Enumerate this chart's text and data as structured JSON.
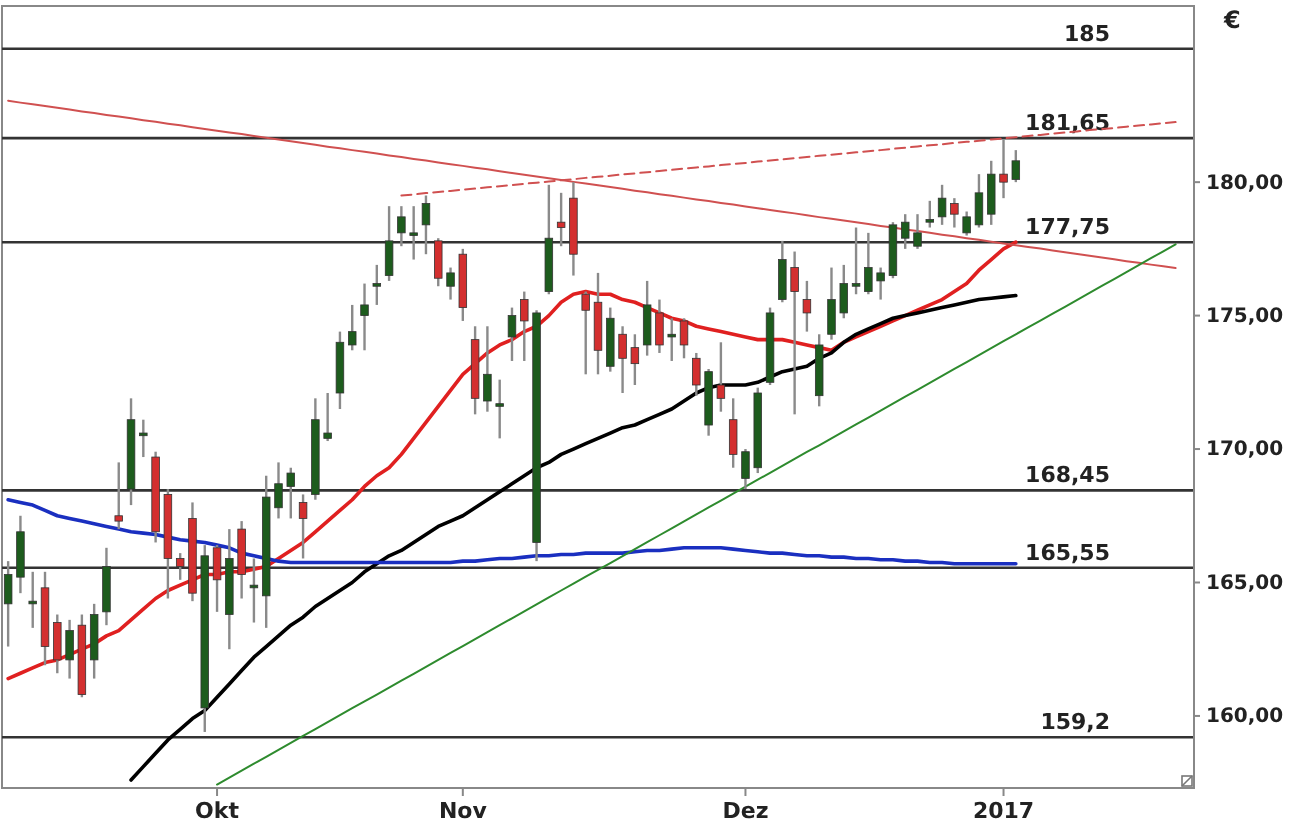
{
  "chart_data": {
    "type": "candlestick",
    "ylabel": "€",
    "categories": [
      null,
      null,
      null,
      null,
      null,
      null,
      null,
      null,
      null,
      null,
      null,
      null,
      null,
      null,
      null,
      null,
      null,
      "Okt",
      null,
      null,
      null,
      null,
      null,
      null,
      null,
      null,
      null,
      null,
      null,
      null,
      null,
      null,
      null,
      null,
      null,
      null,
      null,
      "Nov",
      null,
      null,
      null,
      null,
      null,
      null,
      null,
      null,
      null,
      null,
      null,
      null,
      null,
      null,
      null,
      null,
      null,
      null,
      null,
      null,
      null,
      null,
      "Dez",
      null,
      null,
      null,
      null,
      null,
      null,
      null,
      null,
      null,
      null,
      null,
      null,
      null,
      null,
      null,
      null,
      null,
      null,
      null,
      null,
      "2017",
      null,
      null,
      null,
      null,
      null,
      null,
      null,
      null,
      null,
      null,
      null,
      null,
      null,
      null,
      null
    ],
    "ylim": [
      157.3,
      186.6
    ],
    "yticks": [
      {
        "value": 160,
        "label": "160,00"
      },
      {
        "value": 165,
        "label": "165,00"
      },
      {
        "value": 170,
        "label": "170,00"
      },
      {
        "value": 175,
        "label": "175,00"
      },
      {
        "value": 180,
        "label": "180,00"
      }
    ],
    "grid": false,
    "ref_lines": [
      {
        "axis": "y",
        "value": 185,
        "label": "185",
        "color": "#333333"
      },
      {
        "axis": "y",
        "value": 181.65,
        "label": "181,65",
        "color": "#333333"
      },
      {
        "axis": "y",
        "value": 177.75,
        "label": "177,75",
        "color": "#333333"
      },
      {
        "axis": "y",
        "value": 168.45,
        "label": "168,45",
        "color": "#333333"
      },
      {
        "axis": "y",
        "value": 165.55,
        "label": "165,55",
        "color": "#333333"
      },
      {
        "axis": "y",
        "value": 159.2,
        "label": "159,2",
        "color": "#333333"
      }
    ],
    "series": [
      {
        "type": "line",
        "color": "#e02020",
        "values": [
          161.4,
          161.6,
          161.8,
          162.0,
          162.1,
          162.3,
          162.5,
          162.7,
          163.0,
          163.2,
          163.6,
          164.0,
          164.4,
          164.7,
          164.9,
          165.1,
          165.3,
          165.3,
          165.4,
          165.4,
          165.5,
          165.6,
          165.9,
          166.2,
          166.5,
          166.9,
          167.3,
          167.7,
          168.1,
          168.6,
          169.0,
          169.3,
          169.8,
          170.4,
          171.0,
          171.6,
          172.2,
          172.8,
          173.2,
          173.6,
          173.9,
          174.1,
          174.4,
          174.6,
          175.0,
          175.5,
          175.8,
          175.9,
          175.8,
          175.8,
          175.6,
          175.5,
          175.3,
          175.1,
          174.9,
          174.8,
          174.6,
          174.5,
          174.4,
          174.3,
          174.2,
          174.1,
          174.1,
          174.1,
          174.0,
          173.9,
          173.8,
          173.7,
          174.0,
          174.2,
          174.4,
          174.6,
          174.8,
          175.0,
          175.2,
          175.4,
          175.6,
          175.9,
          176.2,
          176.7,
          177.1,
          177.5,
          177.75,
          null,
          null,
          null,
          null,
          null,
          null,
          null,
          null,
          null,
          null,
          null,
          null,
          null,
          null
        ]
      },
      {
        "type": "line",
        "color": "#000000",
        "values": [
          null,
          null,
          null,
          null,
          null,
          null,
          null,
          null,
          null,
          null,
          157.6,
          158.1,
          158.6,
          159.1,
          159.5,
          159.9,
          160.2,
          160.7,
          161.2,
          161.7,
          162.2,
          162.6,
          163.0,
          163.4,
          163.7,
          164.1,
          164.4,
          164.7,
          165.0,
          165.4,
          165.7,
          166.0,
          166.2,
          166.5,
          166.8,
          167.1,
          167.3,
          167.5,
          167.8,
          168.1,
          168.4,
          168.7,
          169.0,
          169.3,
          169.5,
          169.8,
          170.0,
          170.2,
          170.4,
          170.6,
          170.8,
          170.9,
          171.1,
          171.3,
          171.5,
          171.8,
          172.1,
          172.3,
          172.4,
          172.4,
          172.4,
          172.5,
          172.7,
          172.9,
          173.0,
          173.1,
          173.4,
          173.6,
          174.0,
          174.3,
          174.5,
          174.7,
          174.9,
          175.0,
          175.1,
          175.2,
          175.3,
          175.4,
          175.5,
          175.6,
          175.65,
          175.7,
          175.75,
          null,
          null,
          null,
          null,
          null,
          null,
          null,
          null,
          null,
          null,
          null,
          null,
          null,
          null
        ]
      },
      {
        "type": "line",
        "color": "#1a2fc0",
        "values": [
          168.1,
          168.0,
          167.9,
          167.7,
          167.5,
          167.4,
          167.3,
          167.2,
          167.1,
          167.0,
          166.9,
          166.85,
          166.8,
          166.7,
          166.6,
          166.55,
          166.5,
          166.4,
          166.3,
          166.1,
          166.0,
          165.9,
          165.8,
          165.75,
          165.75,
          165.75,
          165.75,
          165.75,
          165.75,
          165.75,
          165.75,
          165.75,
          165.75,
          165.75,
          165.75,
          165.75,
          165.75,
          165.8,
          165.8,
          165.85,
          165.9,
          165.9,
          165.95,
          166.0,
          166.0,
          166.05,
          166.05,
          166.1,
          166.1,
          166.1,
          166.1,
          166.15,
          166.2,
          166.2,
          166.25,
          166.3,
          166.3,
          166.3,
          166.3,
          166.25,
          166.2,
          166.15,
          166.1,
          166.1,
          166.05,
          166.0,
          166.0,
          165.95,
          165.95,
          165.9,
          165.9,
          165.85,
          165.85,
          165.8,
          165.8,
          165.75,
          165.75,
          165.7,
          165.7,
          165.7,
          165.7,
          165.7,
          165.7,
          null,
          null,
          null,
          null,
          null,
          null,
          null,
          null,
          null,
          null,
          null,
          null,
          null,
          null
        ]
      },
      {
        "type": "line",
        "color": "#d05050",
        "values": [
          183.05,
          182.98,
          182.92,
          182.85,
          182.79,
          182.72,
          182.65,
          182.59,
          182.52,
          182.46,
          182.39,
          182.32,
          182.26,
          182.19,
          182.13,
          182.06,
          181.99,
          181.93,
          181.86,
          181.8,
          181.73,
          181.66,
          181.6,
          181.53,
          181.47,
          181.4,
          181.33,
          181.27,
          181.2,
          181.14,
          181.07,
          181.0,
          180.94,
          180.87,
          180.81,
          180.74,
          180.67,
          180.61,
          180.54,
          180.48,
          180.41,
          180.34,
          180.28,
          180.21,
          180.15,
          180.08,
          180.01,
          179.95,
          179.88,
          179.82,
          179.75,
          179.68,
          179.62,
          179.55,
          179.49,
          179.42,
          179.35,
          179.29,
          179.22,
          179.16,
          179.09,
          179.02,
          178.96,
          178.89,
          178.83,
          178.76,
          178.69,
          178.63,
          178.56,
          178.5,
          178.43,
          178.36,
          178.3,
          178.23,
          178.17,
          178.1,
          178.03,
          177.97,
          177.9,
          177.84,
          177.77,
          177.7,
          177.64,
          177.57,
          177.51,
          177.44,
          177.37,
          177.31,
          177.24,
          177.18,
          177.11,
          177.04,
          176.98,
          176.91,
          176.85,
          176.78,
          null
        ]
      },
      {
        "type": "line",
        "color": "#d05050",
        "line_style": "dashed",
        "values": [
          null,
          null,
          null,
          null,
          null,
          null,
          null,
          null,
          null,
          null,
          null,
          null,
          null,
          null,
          null,
          null,
          null,
          null,
          null,
          null,
          null,
          null,
          null,
          null,
          null,
          null,
          null,
          null,
          null,
          null,
          null,
          null,
          179.5,
          179.54,
          179.59,
          179.63,
          179.67,
          179.72,
          179.76,
          179.81,
          179.85,
          179.89,
          179.94,
          179.98,
          180.02,
          180.07,
          180.11,
          180.16,
          180.2,
          180.24,
          180.29,
          180.33,
          180.37,
          180.42,
          180.46,
          180.51,
          180.55,
          180.59,
          180.64,
          180.68,
          180.72,
          180.77,
          180.81,
          180.85,
          180.9,
          180.94,
          180.99,
          181.03,
          181.07,
          181.12,
          181.16,
          181.2,
          181.25,
          181.29,
          181.34,
          181.38,
          181.42,
          181.47,
          181.51,
          181.55,
          181.6,
          181.64,
          181.68,
          181.73,
          181.77,
          181.82,
          181.86,
          181.9,
          181.95,
          181.99,
          182.03,
          182.08,
          182.12,
          182.16,
          182.21,
          182.25,
          null
        ]
      },
      {
        "type": "line",
        "color": "#2e8b2e",
        "values": [
          null,
          null,
          null,
          null,
          null,
          null,
          null,
          null,
          null,
          null,
          null,
          null,
          null,
          null,
          null,
          null,
          null,
          157.43,
          157.69,
          157.95,
          158.21,
          158.47,
          158.73,
          158.99,
          159.25,
          159.51,
          159.77,
          160.03,
          160.29,
          160.55,
          160.8,
          161.06,
          161.32,
          161.58,
          161.84,
          162.1,
          162.36,
          162.62,
          162.88,
          163.14,
          163.4,
          163.66,
          163.92,
          164.18,
          164.44,
          164.7,
          164.96,
          165.22,
          165.47,
          165.73,
          165.99,
          166.25,
          166.51,
          166.77,
          167.03,
          167.29,
          167.55,
          167.81,
          168.07,
          168.33,
          168.59,
          168.85,
          169.11,
          169.37,
          169.63,
          169.89,
          170.14,
          170.4,
          170.66,
          170.92,
          171.18,
          171.44,
          171.7,
          171.96,
          172.22,
          172.48,
          172.74,
          173.0,
          173.26,
          173.52,
          173.78,
          174.04,
          174.3,
          174.56,
          174.81,
          175.07,
          175.33,
          175.59,
          175.85,
          176.11,
          176.37,
          176.63,
          176.89,
          177.15,
          177.41,
          177.67,
          null
        ]
      },
      {
        "ohlc": [
          [
            164.2,
            165.8,
            162.6,
            165.3
          ],
          [
            165.2,
            167.5,
            164.6,
            166.9
          ],
          [
            164.2,
            165.4,
            163.3,
            164.3
          ],
          [
            164.8,
            165.4,
            161.9,
            162.6
          ],
          [
            163.5,
            163.8,
            161.6,
            162.1
          ],
          [
            162.1,
            163.6,
            161.4,
            163.2
          ],
          [
            163.4,
            163.8,
            160.7,
            160.8
          ],
          [
            162.1,
            164.2,
            161.4,
            163.8
          ],
          [
            163.9,
            166.3,
            163.4,
            165.6
          ],
          [
            167.5,
            169.5,
            167.0,
            167.3
          ],
          [
            168.5,
            171.9,
            167.9,
            171.1
          ],
          [
            170.5,
            171.1,
            169.7,
            170.6
          ],
          [
            169.7,
            169.9,
            166.5,
            166.9
          ],
          [
            168.3,
            168.5,
            164.4,
            165.9
          ],
          [
            165.9,
            166.1,
            165.1,
            165.6
          ],
          [
            167.4,
            168.0,
            164.3,
            164.6
          ],
          [
            160.3,
            166.4,
            159.4,
            166.0
          ],
          [
            166.3,
            166.4,
            163.9,
            165.1
          ],
          [
            163.8,
            167.0,
            162.5,
            165.9
          ],
          [
            167.0,
            167.3,
            164.4,
            165.3
          ],
          [
            164.8,
            165.9,
            163.5,
            164.9
          ],
          [
            164.5,
            169.0,
            163.3,
            168.2
          ],
          [
            167.8,
            169.5,
            167.4,
            168.7
          ],
          [
            168.6,
            169.3,
            167.4,
            169.1
          ],
          [
            168.0,
            168.3,
            165.9,
            167.4
          ],
          [
            168.3,
            171.9,
            168.1,
            171.1
          ],
          [
            170.4,
            172.1,
            170.3,
            170.6
          ],
          [
            172.1,
            174.4,
            171.5,
            174.0
          ],
          [
            173.9,
            175.4,
            173.7,
            174.4
          ],
          [
            175.0,
            176.2,
            173.7,
            175.4
          ],
          [
            176.1,
            176.9,
            175.4,
            176.2
          ],
          [
            176.5,
            179.1,
            176.3,
            177.8
          ],
          [
            178.1,
            179.1,
            177.6,
            178.7
          ],
          [
            178.0,
            179.1,
            177.1,
            178.1
          ],
          [
            178.4,
            179.5,
            177.3,
            179.2
          ],
          [
            177.8,
            177.9,
            176.1,
            176.4
          ],
          [
            176.1,
            176.8,
            175.6,
            176.6
          ],
          [
            177.3,
            177.5,
            174.8,
            175.3
          ],
          [
            174.1,
            174.6,
            171.3,
            171.9
          ],
          [
            171.8,
            174.6,
            171.4,
            172.8
          ],
          [
            171.6,
            172.6,
            170.4,
            171.7
          ],
          [
            174.2,
            175.3,
            173.3,
            175.0
          ],
          [
            175.6,
            175.9,
            173.3,
            174.8
          ],
          [
            166.5,
            175.2,
            165.8,
            175.1
          ],
          [
            175.9,
            179.9,
            175.8,
            177.9
          ],
          [
            178.5,
            179.6,
            177.6,
            178.3
          ],
          [
            179.4,
            180.0,
            176.5,
            177.3
          ],
          [
            175.8,
            175.9,
            172.8,
            175.2
          ],
          [
            175.5,
            176.6,
            172.8,
            173.7
          ],
          [
            173.1,
            175.3,
            172.9,
            174.9
          ],
          [
            174.3,
            174.6,
            172.1,
            173.4
          ],
          [
            173.8,
            174.3,
            172.4,
            173.2
          ],
          [
            173.9,
            176.3,
            173.5,
            175.4
          ],
          [
            175.1,
            175.6,
            173.6,
            173.9
          ],
          [
            174.2,
            174.9,
            173.3,
            174.3
          ],
          [
            174.8,
            174.9,
            173.4,
            173.9
          ],
          [
            173.4,
            173.6,
            172.0,
            172.4
          ],
          [
            170.9,
            173.0,
            170.5,
            172.9
          ],
          [
            172.4,
            174.0,
            171.4,
            171.9
          ],
          [
            171.1,
            171.9,
            169.3,
            169.8
          ],
          [
            168.9,
            170.0,
            168.5,
            169.9
          ],
          [
            169.3,
            172.3,
            169.1,
            172.1
          ],
          [
            172.5,
            175.3,
            172.4,
            175.1
          ],
          [
            175.6,
            177.8,
            175.5,
            177.1
          ],
          [
            176.8,
            177.4,
            171.3,
            175.9
          ],
          [
            175.6,
            176.3,
            174.4,
            175.1
          ],
          [
            172.0,
            174.3,
            171.6,
            173.9
          ],
          [
            174.3,
            176.8,
            174.1,
            175.6
          ],
          [
            175.1,
            176.9,
            174.9,
            176.2
          ],
          [
            176.1,
            178.3,
            175.8,
            176.2
          ],
          [
            175.9,
            178.1,
            175.8,
            176.8
          ],
          [
            176.3,
            176.8,
            175.6,
            176.6
          ],
          [
            176.5,
            178.5,
            176.4,
            178.4
          ],
          [
            177.9,
            178.8,
            177.5,
            178.5
          ],
          [
            177.6,
            178.8,
            177.5,
            178.1
          ],
          [
            178.5,
            179.3,
            178.3,
            178.6
          ],
          [
            178.7,
            179.9,
            178.4,
            179.4
          ],
          [
            179.2,
            179.4,
            178.3,
            178.8
          ],
          [
            178.1,
            178.9,
            178.0,
            178.7
          ],
          [
            178.4,
            180.3,
            178.3,
            179.6
          ],
          [
            178.8,
            180.8,
            178.4,
            180.3
          ],
          [
            180.3,
            181.6,
            179.4,
            180.0
          ],
          [
            180.1,
            181.2,
            180.0,
            180.8
          ],
          null,
          null,
          null,
          null,
          null,
          null,
          null,
          null,
          null,
          null,
          null,
          null,
          null,
          null
        ],
        "colors": [
          "#1d5c1d",
          "#1d5c1d",
          "#1d5c1d",
          "#d32f2f",
          "#d32f2f",
          "#1d5c1d",
          "#d32f2f",
          "#1d5c1d",
          "#1d5c1d",
          "#d32f2f",
          "#1d5c1d",
          "#1d5c1d",
          "#d32f2f",
          "#d32f2f",
          "#d32f2f",
          "#d32f2f",
          "#1d5c1d",
          "#d32f2f",
          "#1d5c1d",
          "#d32f2f",
          "#1d5c1d",
          "#1d5c1d",
          "#1d5c1d",
          "#1d5c1d",
          "#d32f2f",
          "#1d5c1d",
          "#1d5c1d",
          "#1d5c1d",
          "#1d5c1d",
          "#1d5c1d",
          "#1d5c1d",
          "#1d5c1d",
          "#1d5c1d",
          "#1d5c1d",
          "#1d5c1d",
          "#d32f2f",
          "#1d5c1d",
          "#d32f2f",
          "#d32f2f",
          "#1d5c1d",
          "#1d5c1d",
          "#1d5c1d",
          "#d32f2f",
          "#1d5c1d",
          "#1d5c1d",
          "#d32f2f",
          "#d32f2f",
          "#d32f2f",
          "#d32f2f",
          "#1d5c1d",
          "#d32f2f",
          "#d32f2f",
          "#1d5c1d",
          "#d32f2f",
          "#1d5c1d",
          "#d32f2f",
          "#d32f2f",
          "#1d5c1d",
          "#d32f2f",
          "#d32f2f",
          "#1d5c1d",
          "#1d5c1d",
          "#1d5c1d",
          "#1d5c1d",
          "#d32f2f",
          "#d32f2f",
          "#1d5c1d",
          "#1d5c1d",
          "#1d5c1d",
          "#1d5c1d",
          "#1d5c1d",
          "#1d5c1d",
          "#1d5c1d",
          "#1d5c1d",
          "#1d5c1d",
          "#1d5c1d",
          "#1d5c1d",
          "#d32f2f",
          "#1d5c1d",
          "#1d5c1d",
          "#1d5c1d",
          "#d32f2f",
          "#1d5c1d",
          null,
          null,
          null,
          null,
          null,
          null,
          null,
          null,
          null,
          null,
          null,
          null,
          null,
          null
        ]
      }
    ]
  }
}
